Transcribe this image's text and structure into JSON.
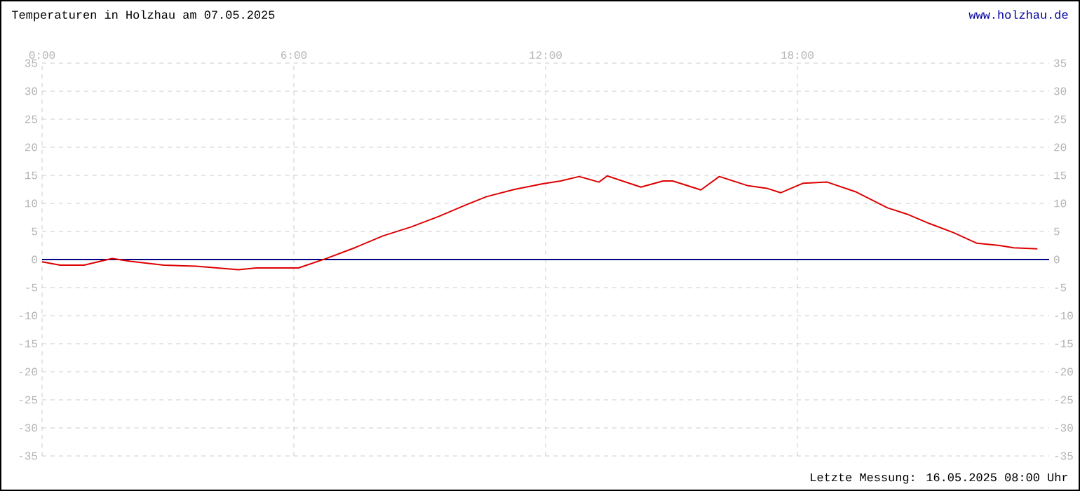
{
  "chart_data": {
    "type": "line",
    "title": "Temperaturen in Holzhau am 07.05.2025",
    "annotations": [
      "www.holzhau.de",
      "Letzte Messung: 16.05.2025 08:00 Uhr"
    ],
    "x": [
      0,
      0.43,
      1.0,
      1.67,
      2.1,
      2.9,
      3.67,
      4.68,
      5.11,
      6.11,
      6.78,
      7.45,
      8.12,
      8.79,
      9.46,
      10.12,
      10.59,
      11.26,
      11.93,
      12.36,
      12.8,
      13.27,
      13.47,
      14.27,
      14.8,
      15.03,
      15.7,
      16.14,
      16.8,
      17.27,
      17.6,
      18.14,
      18.71,
      19.38,
      20.15,
      20.61,
      21.15,
      21.72,
      22.28,
      22.82,
      23.15,
      23.72
    ],
    "series": [
      {
        "color": "#dd0000",
        "values": [
          -0.4,
          -1,
          -1,
          0.2,
          -0.3,
          -1,
          -1.2,
          -1.8,
          -1.5,
          -1.5,
          0.2,
          2.1,
          4.2,
          5.8,
          7.7,
          9.8,
          11.2,
          12.5,
          13.5,
          14,
          14.8,
          13.8,
          14.9,
          12.9,
          14,
          14,
          12.4,
          14.8,
          13.2,
          12.7,
          11.9,
          13.6,
          13.8,
          12.1,
          9.2,
          8.1,
          6.4,
          4.8,
          2.9,
          2.5,
          2.1,
          1.9
        ]
      }
    ],
    "xlim": [
      0,
      24
    ],
    "xticks": [
      {
        "value": 0,
        "label": "0:00"
      },
      {
        "value": 6,
        "label": "6:00"
      },
      {
        "value": 12,
        "label": "12:00"
      },
      {
        "value": 18,
        "label": "18:00"
      }
    ],
    "ylim": [
      -35,
      35
    ],
    "yticks": [
      -35,
      -30,
      -25,
      -20,
      -15,
      -10,
      -5,
      0,
      5,
      10,
      15,
      20,
      25,
      30,
      35
    ],
    "y2lim": [
      -35,
      35
    ],
    "y2ticks": [
      -35,
      -30,
      -25,
      -20,
      -15,
      -10,
      -5,
      0,
      5,
      10,
      15,
      20,
      25,
      30,
      35
    ],
    "ref_lines": [
      {
        "axis": "y",
        "value": 0,
        "color": "#000080"
      }
    ],
    "grid": true,
    "marker": "none",
    "line_style": "solid"
  }
}
